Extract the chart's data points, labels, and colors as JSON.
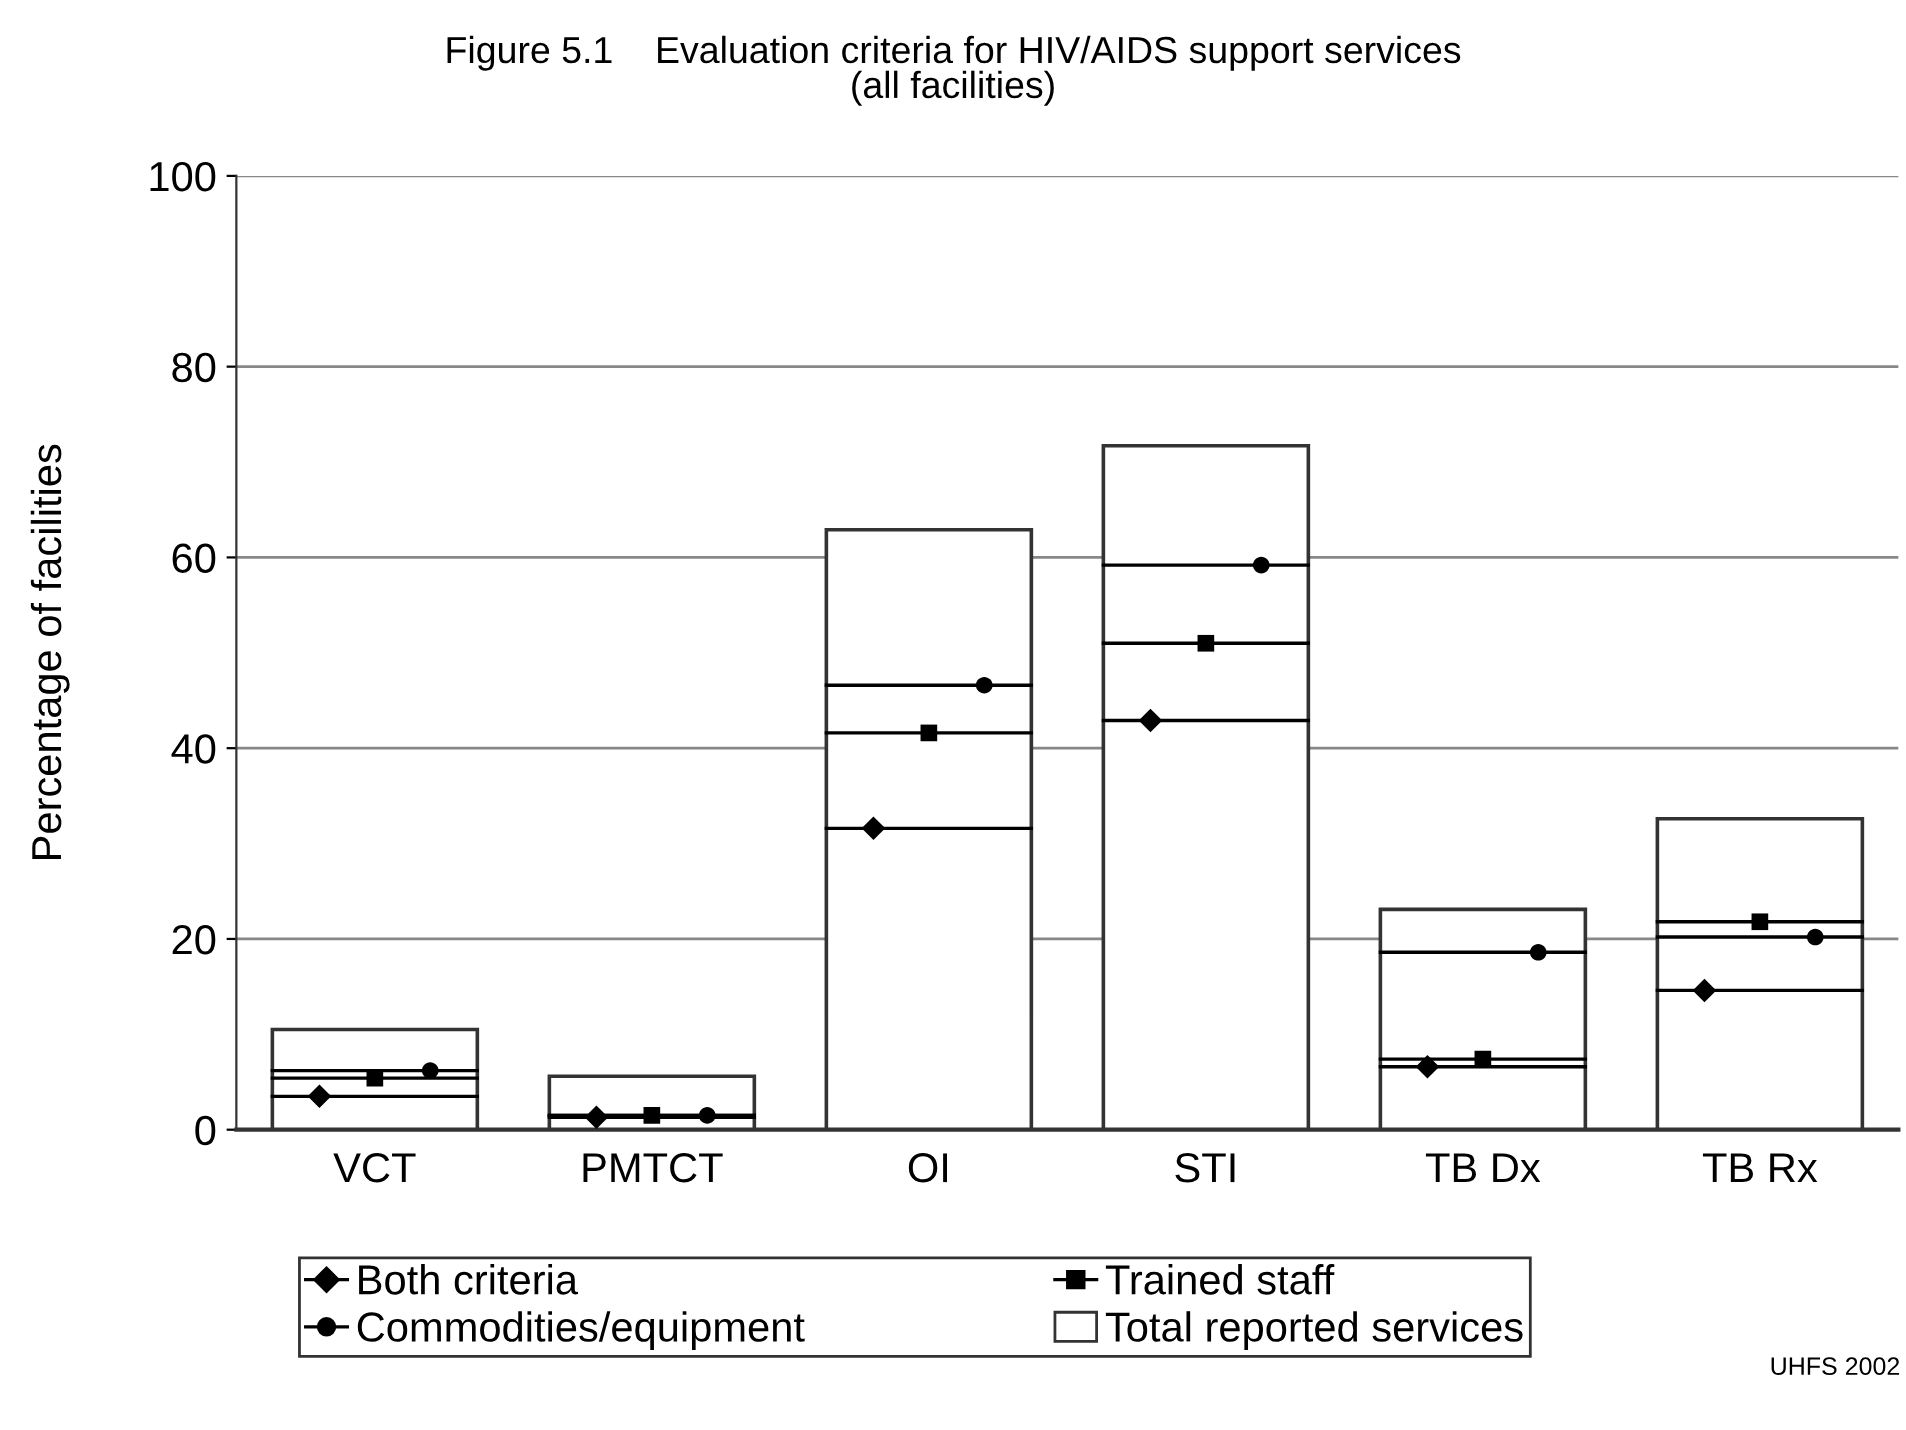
{
  "chart_data": {
    "type": "bar",
    "title": "Figure 5.1    Evaluation criteria for HIV/AIDS support services\n(all facilities)",
    "ylabel": "Percentage of facilities",
    "categories": [
      "VCT",
      "PMTCT",
      "OI",
      "STI",
      "TB Dx",
      "TB Rx"
    ],
    "series": [
      {
        "name": "Both criteria",
        "type": "scatter",
        "marker": "diamond",
        "color": "#000000",
        "values": [
          3.5,
          1.3,
          31.6,
          42.9,
          6.6,
          14.6
        ]
      },
      {
        "name": "Trained staff",
        "type": "scatter",
        "marker": "square",
        "color": "#000000",
        "values": [
          5.4,
          1.5,
          41.6,
          51.0,
          7.4,
          21.8
        ]
      },
      {
        "name": "Commodities/equipment",
        "type": "scatter",
        "marker": "circle",
        "color": "#000000",
        "values": [
          6.2,
          1.5,
          46.6,
          59.2,
          18.6,
          20.2
        ]
      },
      {
        "name": "Total reported services",
        "color": "#ffffff",
        "values": [
          10.5,
          5.6,
          62.9,
          71.7,
          23.1,
          32.6
        ]
      }
    ],
    "ylim": [
      0,
      100
    ],
    "yticks": [
      0,
      20,
      40,
      60,
      80,
      100
    ],
    "grid": "y",
    "legend": "bottom",
    "annotations": [
      "UHFS 2002"
    ]
  }
}
